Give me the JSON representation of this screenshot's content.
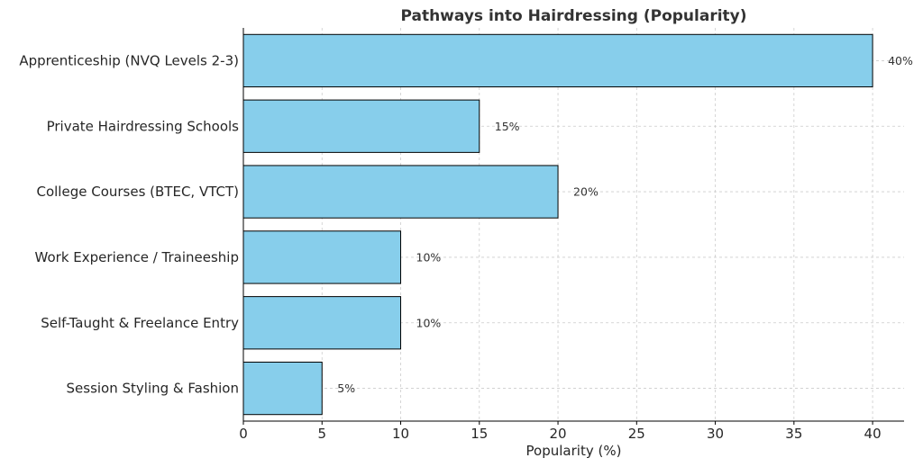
{
  "chart_data": {
    "type": "bar",
    "orientation": "horizontal",
    "title": "Pathways into Hairdressing (Popularity)",
    "xlabel": "Popularity (%)",
    "ylabel": "",
    "categories": [
      "Apprenticeship (NVQ Levels 2-3)",
      "Private Hairdressing Schools",
      "College Courses (BTEC, VTCT)",
      "Work Experience / Traineeship",
      "Self-Taught & Freelance Entry",
      "Session Styling & Fashion"
    ],
    "values": [
      40,
      15,
      20,
      10,
      10,
      5
    ],
    "value_labels": [
      "40%",
      "15%",
      "20%",
      "10%",
      "10%",
      "5%"
    ],
    "xlim": [
      0,
      42
    ],
    "xticks": [
      0,
      5,
      10,
      15,
      20,
      25,
      30,
      35,
      40
    ],
    "grid": true,
    "bar_color": "#87CEEB",
    "bar_edge_color": "#000000"
  }
}
